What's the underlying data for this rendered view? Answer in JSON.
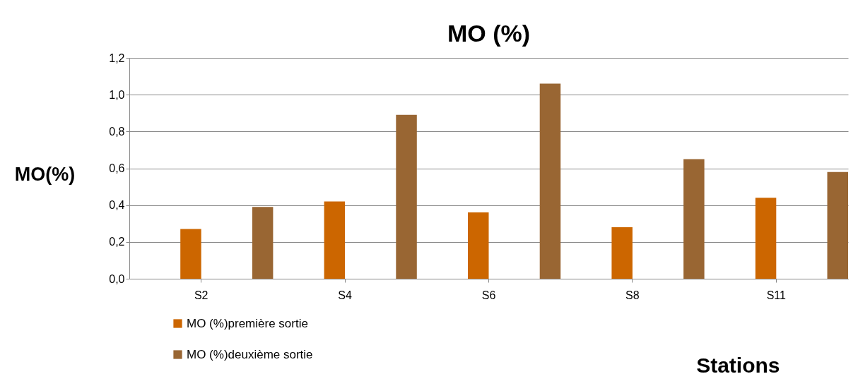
{
  "chart_data": {
    "type": "bar",
    "title": "MO (%)",
    "xlabel": "Stations",
    "ylabel": "MO(%)",
    "categories": [
      "S2",
      "S4",
      "S6",
      "S8",
      "S11"
    ],
    "series": [
      {
        "name": "MO (%)première sortie",
        "color": "#cc6600",
        "values": [
          0.27,
          0.42,
          0.36,
          0.28,
          0.44
        ]
      },
      {
        "name": "MO (%)deuxième sortie",
        "color": "#996633",
        "values": [
          0.39,
          0.89,
          1.06,
          0.65,
          0.58
        ]
      }
    ],
    "ylim": [
      0,
      1.2
    ],
    "yticks": [
      {
        "value": 0,
        "label": "0,0"
      },
      {
        "value": 0.2,
        "label": "0,2"
      },
      {
        "value": 0.4,
        "label": "0,4"
      },
      {
        "value": 0.6,
        "label": "0,6"
      },
      {
        "value": 0.8,
        "label": "0,8"
      },
      {
        "value": 1.0,
        "label": "1,0"
      },
      {
        "value": 1.2,
        "label": "1,2"
      }
    ],
    "grid": true,
    "legend": "bottom"
  }
}
